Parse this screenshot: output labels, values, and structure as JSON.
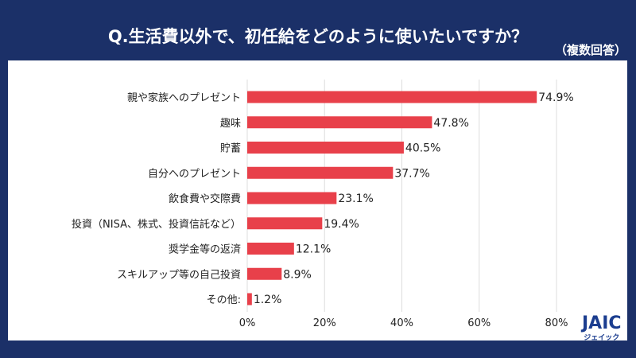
{
  "title": "Q.生活費以外で、初任給をどのように使いたいですか？",
  "subtitle": "（複数回答）",
  "logo": {
    "main": "JAIC",
    "sub": "ジェイック"
  },
  "colors": {
    "background": "#1b3068",
    "bar": "#e8404a",
    "grid": "#dddddd"
  },
  "chart_data": {
    "type": "bar",
    "orientation": "horizontal",
    "categories": [
      "親や家族へのプレゼント",
      "趣味",
      "貯蓄",
      "自分へのプレゼント",
      "飲食費や交際費",
      "投資（NISA、株式、投資信託など）",
      "奨学金等の返済",
      "スキルアップ等の自己投資",
      "その他:"
    ],
    "values": [
      74.9,
      47.8,
      40.5,
      37.7,
      23.1,
      19.4,
      12.1,
      8.9,
      1.2
    ],
    "value_labels": [
      "74.9%",
      "47.8%",
      "40.5%",
      "37.7%",
      "23.1%",
      "19.4%",
      "12.1%",
      "8.9%",
      "1.2%"
    ],
    "xlim": [
      0,
      80
    ],
    "ticks": [
      "0%",
      "20%",
      "40%",
      "60%",
      "80%"
    ],
    "tick_values": [
      0,
      20,
      40,
      60,
      80
    ],
    "grid": true
  }
}
